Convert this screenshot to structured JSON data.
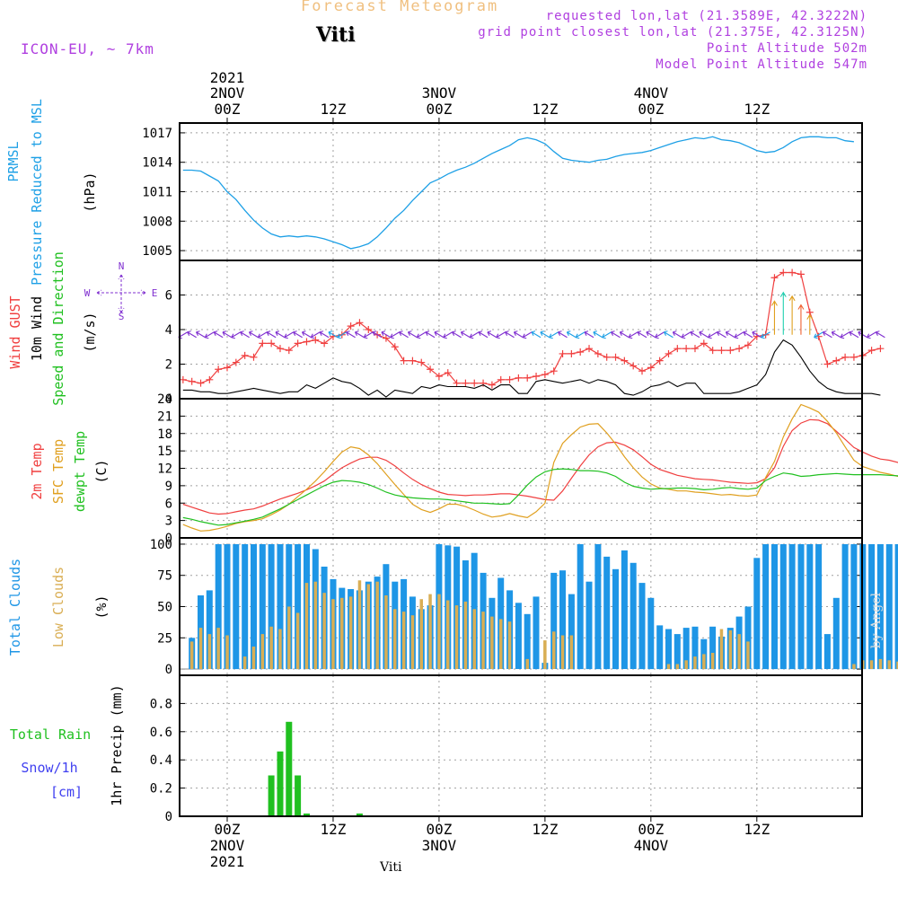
{
  "header": {
    "title": "Forecast Meteogram",
    "place": "Viti",
    "model": "ICON-EU, ~ 7km",
    "requested": "requested lon,lat (21.3589E, 42.3222N)",
    "grid": "grid point closest lon,lat (21.375E, 42.3125N)",
    "point_alt": "Point Altitude 502m",
    "model_alt": "Model Point Altitude 547m"
  },
  "footer": "Viti",
  "watermark": "by Angel",
  "time_axis": {
    "ticks": [
      {
        "h": 0,
        "l1": "2021",
        "l2": "2NOV",
        "l3": "00Z"
      },
      {
        "h": 12,
        "l1": "",
        "l2": "",
        "l3": "12Z"
      },
      {
        "h": 24,
        "l1": "",
        "l2": "3NOV",
        "l3": "00Z"
      },
      {
        "h": 36,
        "l1": "",
        "l2": "",
        "l3": "12Z"
      },
      {
        "h": 48,
        "l1": "",
        "l2": "4NOV",
        "l3": "00Z"
      },
      {
        "h": 60,
        "l1": "",
        "l2": "",
        "l3": "12Z"
      }
    ],
    "bottom_ticks": [
      {
        "h": 0,
        "l1": "00Z",
        "l2": "2NOV",
        "l3": "2021"
      },
      {
        "h": 12,
        "l1": "12Z",
        "l2": "",
        "l3": ""
      },
      {
        "h": 24,
        "l1": "00Z",
        "l2": "3NOV",
        "l3": ""
      },
      {
        "h": 36,
        "l1": "12Z",
        "l2": "",
        "l3": ""
      },
      {
        "h": 48,
        "l1": "00Z",
        "l2": "4NOV",
        "l3": ""
      },
      {
        "h": 60,
        "l1": "12Z",
        "l2": "",
        "l3": ""
      }
    ]
  },
  "colors": {
    "pressure": "#1ea0e6",
    "gust": "#f04040",
    "wind": "#000000",
    "wind_dir": "#20c020",
    "temp2m": "#f04040",
    "sfc": "#e0a020",
    "dew": "#20c020",
    "total_cloud": "#1e96e6",
    "low_cloud": "#d9ae54",
    "rain": "#20c020",
    "snow": "#4040f0",
    "grid": "#a0a0a0",
    "barb": "#8030d0"
  },
  "chart_data": [
    {
      "type": "line",
      "title": "PRMSL Pressure Reduced to MSL",
      "ylabel_left": [
        "PRMSL",
        "Pressure Reduced to MSL"
      ],
      "ylabel_unit": "(hPa)",
      "ylim": [
        1004,
        1018
      ],
      "yticks": [
        1005,
        1008,
        1011,
        1014,
        1017
      ],
      "x_start": -5,
      "series": [
        {
          "name": "PRMSL",
          "values": [
            1013.2,
            1013.2,
            1013.1,
            1012.6,
            1012.1,
            1011.0,
            1010.2,
            1009.1,
            1008.1,
            1007.3,
            1006.7,
            1006.4,
            1006.5,
            1006.4,
            1006.5,
            1006.4,
            1006.2,
            1005.9,
            1005.6,
            1005.2,
            1005.4,
            1005.7,
            1006.4,
            1007.3,
            1008.3,
            1009.1,
            1010.1,
            1011.0,
            1011.9,
            1012.3,
            1012.8,
            1013.2,
            1013.5,
            1013.9,
            1014.4,
            1014.9,
            1015.3,
            1015.7,
            1016.3,
            1016.5,
            1016.3,
            1015.9,
            1015.1,
            1014.4,
            1014.2,
            1014.1,
            1014.0,
            1014.2,
            1014.3,
            1014.6,
            1014.8,
            1014.9,
            1015.0,
            1015.2,
            1015.5,
            1015.8,
            1016.1,
            1016.3,
            1016.5,
            1016.4,
            1016.6,
            1016.3,
            1016.2,
            1016.0,
            1015.6,
            1015.2,
            1015.0,
            1015.1,
            1015.5,
            1016.1,
            1016.5,
            1016.6,
            1016.6,
            1016.5,
            1016.5,
            1016.2,
            1016.1
          ]
        }
      ]
    },
    {
      "type": "line",
      "title": "Wind GUST / 10m Wind Speed and Direction",
      "ylabel_left": [
        "Wind GUST",
        "10m Wind",
        "Speed and Direction"
      ],
      "ylabel_unit": "(m/s)",
      "ylim": [
        0,
        8
      ],
      "yticks": [
        0,
        2,
        4,
        6
      ],
      "compass": {
        "n": "N",
        "s": "S",
        "w": "W",
        "e": "E"
      },
      "x_start": -5,
      "series": [
        {
          "name": "Wind GUST",
          "values": [
            1.1,
            1.0,
            0.9,
            1.1,
            1.7,
            1.8,
            2.1,
            2.5,
            2.4,
            3.2,
            3.2,
            2.9,
            2.8,
            3.2,
            3.3,
            3.4,
            3.2,
            3.6,
            3.7,
            4.2,
            4.4,
            4.0,
            3.7,
            3.5,
            3.0,
            2.2,
            2.2,
            2.1,
            1.7,
            1.3,
            1.5,
            0.9,
            0.9,
            0.9,
            0.9,
            0.8,
            1.1,
            1.1,
            1.2,
            1.2,
            1.3,
            1.4,
            1.6,
            2.6,
            2.6,
            2.7,
            2.9,
            2.6,
            2.4,
            2.4,
            2.2,
            1.9,
            1.6,
            1.8,
            2.2,
            2.6,
            2.9,
            2.9,
            2.9,
            3.2,
            2.8,
            2.8,
            2.8,
            2.9,
            3.1,
            3.6,
            3.7,
            7.0,
            7.3,
            7.3,
            7.2,
            5.0,
            3.6,
            2.0,
            2.2,
            2.4,
            2.4,
            2.5,
            2.8,
            2.9
          ]
        },
        {
          "name": "10m Wind",
          "values": [
            0.5,
            0.5,
            0.4,
            0.4,
            0.3,
            0.3,
            0.4,
            0.5,
            0.6,
            0.5,
            0.4,
            0.3,
            0.4,
            0.4,
            0.8,
            0.6,
            0.9,
            1.2,
            1.0,
            0.9,
            0.6,
            0.2,
            0.5,
            0.1,
            0.5,
            0.4,
            0.3,
            0.7,
            0.6,
            0.8,
            0.7,
            0.7,
            0.7,
            0.6,
            0.8,
            0.5,
            0.8,
            0.8,
            0.3,
            0.3,
            1.0,
            1.1,
            1.0,
            0.9,
            1.0,
            1.1,
            0.9,
            1.1,
            1.0,
            0.8,
            0.3,
            0.2,
            0.4,
            0.7,
            0.8,
            1.0,
            0.7,
            0.9,
            0.9,
            0.3,
            0.3,
            0.3,
            0.3,
            0.4,
            0.6,
            0.8,
            1.4,
            2.7,
            3.4,
            3.1,
            2.4,
            1.6,
            1.0,
            0.6,
            0.4,
            0.3,
            0.3,
            0.3,
            0.3,
            0.2
          ]
        }
      ]
    },
    {
      "type": "line",
      "title": "2m Temp / SFC Temp / dewpt Temp",
      "ylabel_left": [
        "2m Temp",
        "SFC Temp",
        "dewpt Temp"
      ],
      "ylabel_unit": "(C)",
      "ylim": [
        0,
        24
      ],
      "yticks": [
        0,
        3,
        6,
        9,
        12,
        15,
        18,
        21,
        24
      ],
      "x_start": -5,
      "series": [
        {
          "name": "2m Temp",
          "values": [
            5.8,
            5.3,
            4.8,
            4.3,
            4.1,
            4.2,
            4.5,
            4.8,
            5.0,
            5.5,
            6.1,
            6.7,
            7.2,
            7.7,
            8.3,
            9.0,
            9.8,
            11.0,
            12.1,
            12.9,
            13.6,
            13.9,
            13.9,
            13.4,
            12.4,
            11.2,
            10.1,
            9.2,
            8.5,
            7.9,
            7.5,
            7.4,
            7.3,
            7.4,
            7.4,
            7.5,
            7.6,
            7.6,
            7.4,
            7.2,
            6.9,
            6.6,
            6.5,
            8.1,
            10.3,
            12.4,
            14.3,
            15.7,
            16.4,
            16.5,
            16.0,
            15.2,
            14.0,
            12.7,
            11.8,
            11.3,
            10.8,
            10.5,
            10.2,
            10.1,
            10.0,
            9.8,
            9.6,
            9.5,
            9.4,
            9.5,
            10.2,
            12.1,
            15.8,
            18.5,
            19.8,
            20.4,
            20.3,
            19.7,
            18.4,
            17.0,
            15.6,
            14.8,
            14.1,
            13.6,
            13.4,
            13.0,
            12.1
          ]
        },
        {
          "name": "SFC Temp",
          "values": [
            2.3,
            1.7,
            1.2,
            1.3,
            1.6,
            2.0,
            2.5,
            2.8,
            3.0,
            3.3,
            4.0,
            4.8,
            5.8,
            7.1,
            8.4,
            9.8,
            11.4,
            13.2,
            14.8,
            15.7,
            15.4,
            14.3,
            12.8,
            11.0,
            9.2,
            7.5,
            5.8,
            4.9,
            4.4,
            5.0,
            5.8,
            5.8,
            5.4,
            4.8,
            4.1,
            3.6,
            3.8,
            4.2,
            3.8,
            3.5,
            4.5,
            6.0,
            13.0,
            16.3,
            17.8,
            19.1,
            19.6,
            19.7,
            18.1,
            16.2,
            14.0,
            12.1,
            10.5,
            9.3,
            8.6,
            8.4,
            8.1,
            8.1,
            7.9,
            7.8,
            7.6,
            7.4,
            7.5,
            7.3,
            7.2,
            7.4,
            10.4,
            13.2,
            17.4,
            20.5,
            23.0,
            22.4,
            21.7,
            20.1,
            18.1,
            15.7,
            13.4,
            12.3,
            11.8,
            11.3,
            11.0,
            10.6,
            10.2
          ]
        },
        {
          "name": "dewpt Temp",
          "values": [
            3.5,
            3.2,
            2.8,
            2.5,
            2.2,
            2.3,
            2.6,
            2.9,
            3.2,
            3.6,
            4.3,
            5.0,
            5.8,
            6.6,
            7.4,
            8.2,
            9.0,
            9.6,
            9.9,
            9.8,
            9.6,
            9.2,
            8.6,
            7.9,
            7.4,
            7.1,
            6.9,
            6.8,
            6.7,
            6.7,
            6.6,
            6.4,
            6.2,
            6.0,
            6.0,
            5.9,
            5.8,
            5.9,
            7.4,
            9.1,
            10.5,
            11.4,
            11.8,
            11.9,
            11.8,
            11.6,
            11.6,
            11.5,
            11.2,
            10.6,
            9.6,
            8.9,
            8.6,
            8.4,
            8.5,
            8.5,
            8.6,
            8.6,
            8.5,
            8.3,
            8.4,
            8.6,
            8.7,
            8.5,
            8.4,
            8.6,
            9.9,
            10.6,
            11.2,
            11.0,
            10.6,
            10.7,
            10.9,
            11.0,
            11.1,
            11.0,
            10.9,
            10.9,
            10.9,
            10.9,
            10.8,
            10.7,
            10.4,
            10.1,
            9.8
          ]
        }
      ]
    },
    {
      "type": "bar",
      "title": "Total Clouds / Low Clouds",
      "ylabel_left": [
        "Total Clouds",
        "Low Clouds"
      ],
      "ylabel_unit": "(%)",
      "ylim": [
        -5,
        105
      ],
      "yticks": [
        0,
        25,
        50,
        75,
        100
      ],
      "x_start": -4,
      "series": [
        {
          "name": "Total Clouds",
          "values": [
            25,
            59,
            63,
            100,
            100,
            100,
            100,
            100,
            100,
            100,
            100,
            100,
            100,
            100,
            96,
            82,
            72,
            65,
            64,
            63,
            70,
            74,
            84,
            70,
            72,
            58,
            48,
            51,
            100,
            99,
            98,
            87,
            93,
            77,
            57,
            73,
            63,
            53,
            44,
            58,
            5,
            77,
            79,
            60,
            100,
            70,
            100,
            90,
            80,
            95,
            85,
            69,
            57,
            35,
            32,
            28,
            33,
            34,
            24,
            34,
            26,
            33,
            42,
            50,
            89,
            100,
            100,
            100,
            100,
            100,
            100,
            100,
            28,
            57,
            100,
            100,
            100,
            100,
            100,
            100,
            100,
            100,
            100,
            100,
            85,
            100
          ]
        },
        {
          "name": "Low Clouds",
          "values": [
            22,
            33,
            28,
            33,
            27,
            0,
            10,
            18,
            28,
            34,
            32,
            50,
            45,
            69,
            70,
            61,
            56,
            57,
            58,
            71,
            68,
            70,
            59,
            48,
            46,
            43,
            56,
            60,
            60,
            55,
            51,
            54,
            48,
            46,
            42,
            40,
            38,
            0,
            8,
            0,
            23,
            30,
            27,
            27,
            0,
            0,
            0,
            0,
            0,
            0,
            0,
            0,
            0,
            0,
            4,
            4,
            7,
            10,
            12,
            13,
            32,
            31,
            28,
            22,
            0,
            0,
            0,
            0,
            0,
            0,
            0,
            0,
            0,
            0,
            0,
            4,
            7,
            7,
            8,
            7,
            6,
            5,
            4,
            0,
            0,
            0
          ]
        }
      ]
    },
    {
      "type": "bar",
      "title": "Total Rain / Snow per 1h",
      "ylabel_left": [
        "Total  Rain",
        "Snow/1h",
        "[cm]"
      ],
      "ylabel_unit": "1hr Precip (mm)",
      "ylim": [
        0,
        1.0
      ],
      "yticks": [
        0,
        0.2,
        0.4,
        0.6,
        0.8
      ],
      "ytick_labels": [
        "0",
        "0.2",
        "0.4",
        "0.6",
        "0.8"
      ],
      "series": [
        {
          "name": "Total Rain",
          "points": [
            {
              "h": 5,
              "v": 0.29
            },
            {
              "h": 6,
              "v": 0.46
            },
            {
              "h": 7,
              "v": 0.67
            },
            {
              "h": 8,
              "v": 0.29
            },
            {
              "h": 9,
              "v": 0.02
            },
            {
              "h": 15,
              "v": 0.02
            }
          ]
        }
      ]
    }
  ]
}
